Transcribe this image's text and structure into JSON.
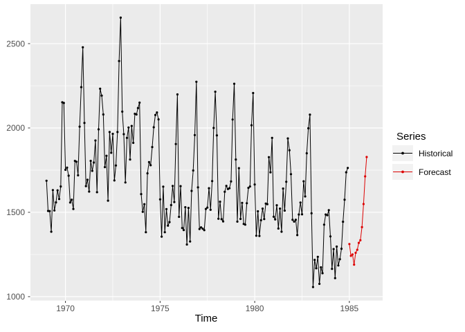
{
  "chart_data": {
    "type": "line",
    "xlabel": "Time",
    "legend_title": "Series",
    "legend_position": "right",
    "grid": true,
    "x_ticks": [
      1970,
      1975,
      1980,
      1985
    ],
    "y_ticks": [
      1000,
      1500,
      2000,
      2500
    ],
    "x_minor_ticks": [
      1972.5,
      1977.5,
      1982.5
    ],
    "y_minor_ticks": [
      1250,
      1750,
      2250
    ],
    "xlim": [
      1968.15,
      1986.76
    ],
    "ylim": [
      977,
      2734
    ],
    "frequency": 12,
    "colors": {
      "panel_background": "#EBEBEB",
      "grid": "#FFFFFF",
      "axis_text": "#4D4D4D",
      "tick_marks": "#333333",
      "axis_title": "#000000",
      "legend_key_background": "#F2F2F2"
    },
    "series": [
      {
        "name": "Historical",
        "color": "#000000",
        "start": 1969.0,
        "values": [
          1687,
          1508,
          1507,
          1385,
          1632,
          1511,
          1559,
          1630,
          1579,
          1653,
          2152,
          2148,
          1752,
          1765,
          1717,
          1558,
          1575,
          1520,
          1805,
          1800,
          1719,
          2008,
          2242,
          2478,
          2030,
          1655,
          1693,
          1623,
          1805,
          1746,
          1795,
          1926,
          1619,
          1992,
          2233,
          2192,
          2080,
          1768,
          1835,
          1569,
          1976,
          1853,
          1965,
          1689,
          1778,
          1976,
          2397,
          2654,
          2097,
          1963,
          1677,
          1941,
          2003,
          1813,
          2012,
          1912,
          2084,
          2080,
          2118,
          2150,
          1608,
          1503,
          1548,
          1382,
          1731,
          1798,
          1779,
          1887,
          2004,
          2077,
          2092,
          2051,
          1577,
          1356,
          1652,
          1382,
          1519,
          1421,
          1442,
          1543,
          1656,
          1561,
          1905,
          2199,
          1473,
          1655,
          1407,
          1395,
          1530,
          1309,
          1526,
          1327,
          1627,
          1748,
          1958,
          2274,
          1648,
          1401,
          1411,
          1403,
          1394,
          1520,
          1528,
          1643,
          1515,
          1685,
          2000,
          2215,
          1956,
          1462,
          1563,
          1459,
          1446,
          1622,
          1657,
          1638,
          1643,
          1683,
          2050,
          2262,
          1813,
          1445,
          1762,
          1461,
          1556,
          1431,
          1427,
          1554,
          1645,
          1653,
          2016,
          2207,
          1665,
          1361,
          1506,
          1360,
          1453,
          1522,
          1460,
          1552,
          1548,
          1827,
          1737,
          1941,
          1474,
          1458,
          1542,
          1404,
          1522,
          1385,
          1641,
          1510,
          1681,
          1938,
          1868,
          1726,
          1456,
          1445,
          1456,
          1365,
          1487,
          1558,
          1488,
          1684,
          1594,
          1850,
          1998,
          2079,
          1494,
          1057,
          1218,
          1168,
          1236,
          1076,
          1174,
          1139,
          1427,
          1487,
          1483,
          1513,
          1357,
          1165,
          1282,
          1110,
          1297,
          1185,
          1222,
          1284,
          1444,
          1575,
          1737,
          1763
        ]
      },
      {
        "name": "Forecast",
        "color": "#DD0000",
        "start": 1985.0,
        "values": [
          1312,
          1242,
          1250,
          1190,
          1260,
          1278,
          1319,
          1334,
          1412,
          1549,
          1713,
          1828
        ]
      }
    ]
  }
}
